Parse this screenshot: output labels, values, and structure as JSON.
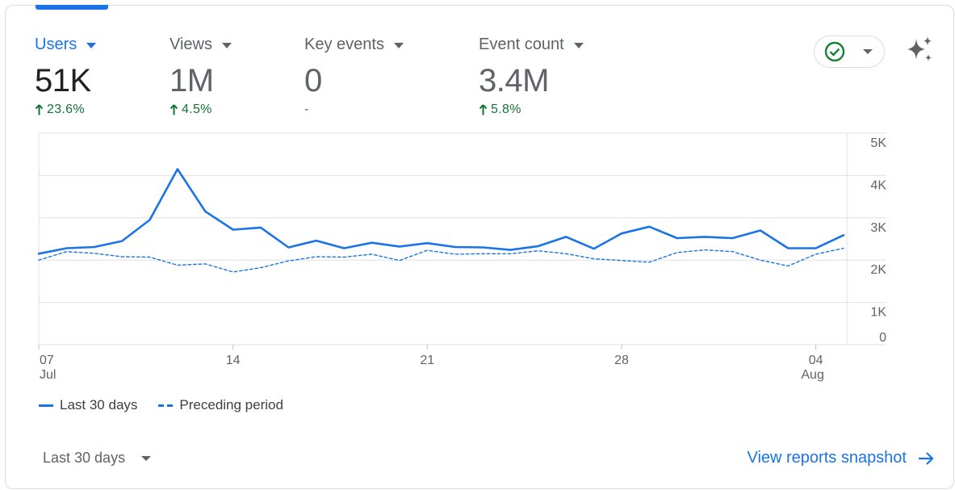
{
  "metrics": [
    {
      "title": "Users",
      "value": "51K",
      "change": "23.6%",
      "trend": "up",
      "active": true
    },
    {
      "title": "Views",
      "value": "1M",
      "change": "4.5%",
      "trend": "up",
      "active": false
    },
    {
      "title": "Key events",
      "value": "0",
      "change": "-",
      "trend": "none",
      "active": false
    },
    {
      "title": "Event count",
      "value": "3.4M",
      "change": "5.8%",
      "trend": "up",
      "active": false
    }
  ],
  "colors": {
    "accent": "#1a73e8",
    "positive": "#137333",
    "status_check": "#188038",
    "grid": "#e0e0e0"
  },
  "status_icon": "check-circle-icon",
  "insights_icon": "sparkle-icon",
  "chart_data": {
    "type": "line",
    "y_axis": {
      "ticks": [
        0,
        1000,
        2000,
        3000,
        4000,
        5000
      ],
      "tick_labels": [
        "0",
        "1K",
        "2K",
        "3K",
        "4K",
        "5K"
      ],
      "position": "right",
      "ylim": [
        0,
        5000
      ]
    },
    "x_axis": {
      "tick_labels": [
        {
          "day": "07",
          "month": "Jul",
          "index": 0
        },
        {
          "day": "14",
          "month": "",
          "index": 7
        },
        {
          "day": "21",
          "month": "",
          "index": 14
        },
        {
          "day": "28",
          "month": "",
          "index": 21
        },
        {
          "day": "04",
          "month": "Aug",
          "index": 28
        }
      ]
    },
    "series": [
      {
        "name": "Last 30 days",
        "style": "solid",
        "values": [
          2150,
          2280,
          2310,
          2450,
          2950,
          4150,
          3150,
          2720,
          2770,
          2300,
          2460,
          2280,
          2410,
          2320,
          2400,
          2310,
          2300,
          2240,
          2330,
          2550,
          2270,
          2630,
          2790,
          2520,
          2550,
          2520,
          2700,
          2280,
          2280,
          2590
        ]
      },
      {
        "name": "Preceding period",
        "style": "dashed",
        "values": [
          2000,
          2200,
          2160,
          2080,
          2070,
          1880,
          1910,
          1720,
          1820,
          1980,
          2080,
          2070,
          2140,
          1990,
          2230,
          2140,
          2150,
          2150,
          2220,
          2150,
          2030,
          1990,
          1950,
          2180,
          2240,
          2200,
          2000,
          1860,
          2140,
          2280
        ]
      }
    ]
  },
  "footer": {
    "date_range_label": "Last 30 days",
    "view_link_label": "View reports snapshot"
  }
}
